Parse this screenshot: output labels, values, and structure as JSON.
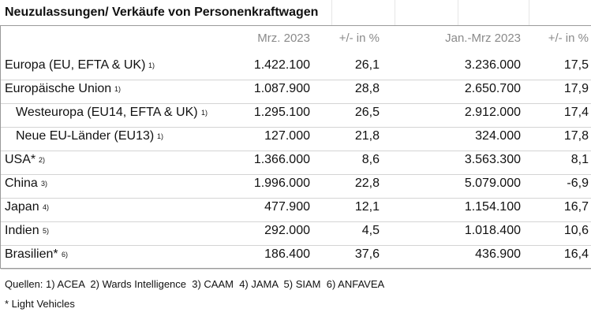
{
  "title": "Neuzulassungen/ Verkäufe von Personenkraftwagen",
  "table": {
    "header": [
      "Mrz. 2023",
      "+/- in %",
      "Jan.-Mrz 2023",
      "+/- in %"
    ],
    "rows": [
      {
        "label": "Europa (EU, EFTA & UK)",
        "note": "1)",
        "cells": [
          "1.422.100",
          "26,1",
          "3.236.000",
          "17,5"
        ]
      },
      {
        "label": "Europäische Union",
        "note": "1)",
        "cells": [
          "1.087.900",
          "28,8",
          "2.650.700",
          "17,9"
        ]
      },
      {
        "label": "Westeuropa (EU14, EFTA & UK)",
        "note": "1)",
        "cells": [
          "1.295.100",
          "26,5",
          "2.912.000",
          "17,4"
        ]
      },
      {
        "label": "Neue EU-Länder (EU13)",
        "note": "1)",
        "cells": [
          "127.000",
          "21,8",
          "324.000",
          "17,8"
        ]
      },
      {
        "label": "USA*",
        "note": "2)",
        "cells": [
          "1.366.000",
          "8,6",
          "3.563.300",
          "8,1"
        ]
      },
      {
        "label": "China",
        "note": "3)",
        "cells": [
          "1.996.000",
          "22,8",
          "5.079.000",
          "-6,9"
        ]
      },
      {
        "label": "Japan",
        "note": "4)",
        "cells": [
          "477.900",
          "12,1",
          "1.154.100",
          "16,7"
        ]
      },
      {
        "label": "Indien",
        "note": "5)",
        "cells": [
          "292.000",
          "4,5",
          "1.018.400",
          "10,6"
        ]
      },
      {
        "label": "Brasilien*",
        "note": "6)",
        "cells": [
          "186.400",
          "37,6",
          "436.900",
          "16,4"
        ]
      }
    ]
  },
  "footer": [
    "Quellen: 1) ACEA  2) Wards Intelligence  3) CAAM  4) JAMA  5) SIAM  6) ANFAVEA",
    "* Light Vehicles"
  ]
}
